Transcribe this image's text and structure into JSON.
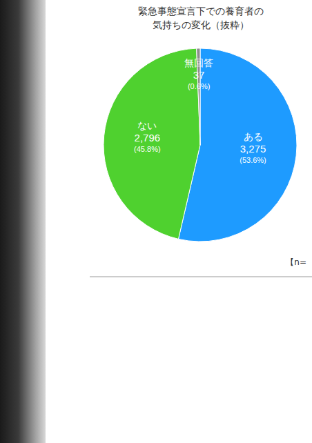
{
  "chart_data": {
    "type": "pie",
    "title": "緊急事態宣言下での養育者の気持ちの変化（抜粋）",
    "categories": [
      "ある",
      "ない",
      "無回答"
    ],
    "values": [
      3275,
      2796,
      37
    ],
    "value_labels": [
      "3,275",
      "2,796",
      "37"
    ],
    "percentages": [
      53.6,
      45.8,
      0.6
    ],
    "percentage_labels": [
      "(53.6%)",
      "(45.8%)",
      "(0.6%)"
    ],
    "colors": [
      "#1e9bff",
      "#4fd12f",
      "#8c8c8c"
    ],
    "data_labels": true,
    "annotation": "【n="
  }
}
